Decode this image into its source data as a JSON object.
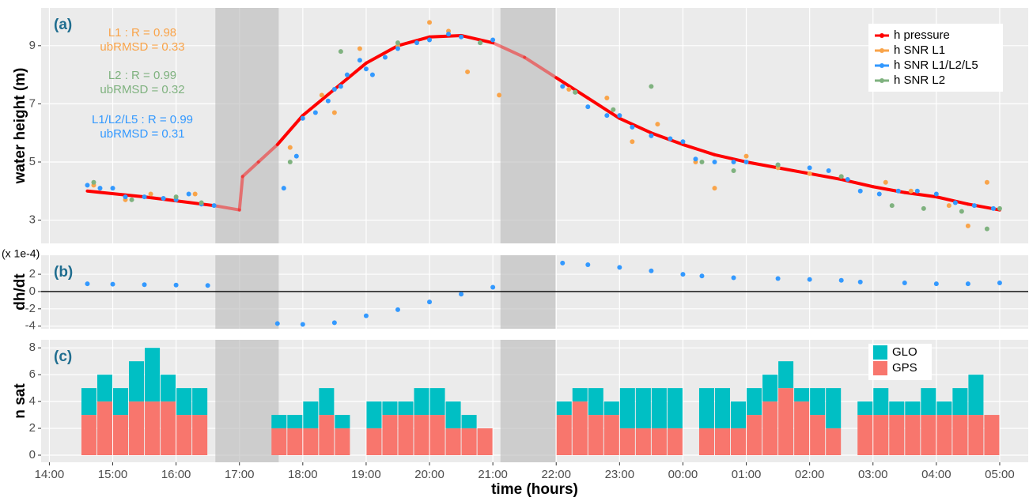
{
  "chart_data": [
    {
      "type": "scatter",
      "panel_label": "(a)",
      "y_label": "water height (m)",
      "ylim": [
        2.2,
        10.3
      ],
      "yticks": [
        3,
        5,
        7,
        9
      ],
      "grid": true,
      "shaded_x": [
        [
          16.62,
          17.62
        ],
        [
          21.12,
          21.99
        ]
      ],
      "annotations": [
        {
          "text": "L1 : R =  0.98",
          "color": "#f9a44a"
        },
        {
          "text": "ubRMSD =  0.33",
          "color": "#f9a44a"
        },
        {
          "text": "L2 : R =  0.99",
          "color": "#7fb27f"
        },
        {
          "text": "ubRMSD =  0.32",
          "color": "#7fb27f"
        },
        {
          "text": "L1/L2/L5 : R =  0.99",
          "color": "#3399ff"
        },
        {
          "text": "ubRMSD =  0.31",
          "color": "#3399ff"
        }
      ],
      "series": [
        {
          "name": "h pressure",
          "color": "#ff0000",
          "style": "line",
          "x": [
            14.6,
            15.5,
            16.6,
            17.0,
            17.05,
            17.3,
            17.6,
            18.0,
            18.5,
            19.0,
            19.5,
            20.0,
            20.5,
            21.0,
            21.5,
            22.0,
            22.5,
            23.0,
            23.5,
            24.0,
            24.5,
            25.0,
            25.5,
            26.0,
            26.5,
            27.0,
            27.5,
            28.0,
            28.5,
            29.0
          ],
          "values": [
            4.0,
            3.8,
            3.5,
            3.35,
            4.5,
            5.0,
            5.6,
            6.6,
            7.5,
            8.4,
            9.0,
            9.3,
            9.35,
            9.1,
            8.6,
            7.9,
            7.2,
            6.5,
            6.0,
            5.6,
            5.25,
            5.0,
            4.8,
            4.6,
            4.4,
            4.15,
            3.95,
            3.8,
            3.55,
            3.35
          ]
        },
        {
          "name": "h SNR L1",
          "color": "#f9a44a",
          "style": "points",
          "x": [
            14.7,
            15.2,
            15.6,
            16.0,
            16.3,
            17.8,
            18.3,
            18.5,
            18.9,
            19.5,
            20.0,
            20.3,
            20.6,
            21.1,
            22.2,
            22.8,
            23.2,
            23.6,
            24.2,
            24.5,
            25.0,
            25.5,
            26.0,
            26.5,
            27.2,
            27.6,
            28.2,
            28.5,
            28.8
          ],
          "values": [
            4.2,
            3.7,
            3.9,
            3.7,
            3.9,
            5.5,
            7.3,
            6.7,
            8.9,
            9.0,
            9.8,
            9.5,
            8.1,
            7.3,
            7.5,
            7.2,
            5.7,
            6.3,
            5.0,
            4.1,
            5.2,
            4.8,
            4.6,
            4.5,
            4.3,
            4.0,
            3.5,
            2.8,
            4.3
          ]
        },
        {
          "name": "h SNR L1/L2/L5",
          "color": "#3399ff",
          "style": "points",
          "x": [
            14.6,
            14.8,
            15.0,
            15.2,
            15.5,
            15.8,
            16.0,
            16.2,
            16.4,
            16.6,
            17.7,
            17.9,
            18.0,
            18.2,
            18.4,
            18.5,
            18.6,
            18.7,
            18.9,
            19.0,
            19.1,
            19.3,
            19.5,
            19.8,
            20.0,
            20.3,
            20.5,
            20.8,
            21.0,
            22.1,
            22.3,
            22.5,
            22.8,
            23.0,
            23.2,
            23.5,
            23.8,
            24.0,
            24.2,
            24.5,
            24.8,
            25.0,
            25.5,
            26.0,
            26.3,
            26.6,
            26.8,
            27.1,
            27.4,
            27.7,
            28.0,
            28.3,
            28.6,
            28.9
          ],
          "values": [
            4.2,
            4.1,
            4.1,
            3.8,
            3.8,
            3.75,
            3.7,
            3.9,
            3.55,
            3.5,
            4.1,
            5.2,
            6.5,
            6.7,
            7.1,
            7.5,
            7.6,
            8.0,
            8.5,
            8.2,
            8.0,
            8.6,
            8.9,
            9.1,
            9.2,
            9.4,
            9.3,
            9.1,
            9.2,
            7.6,
            7.4,
            6.9,
            6.6,
            6.6,
            6.2,
            5.9,
            5.8,
            5.7,
            5.1,
            5.0,
            5.0,
            5.0,
            4.9,
            4.8,
            4.7,
            4.4,
            4.0,
            3.9,
            4.0,
            4.0,
            3.9,
            3.6,
            3.5,
            3.4
          ]
        },
        {
          "name": "h SNR L2",
          "color": "#7fb27f",
          "style": "points",
          "x": [
            14.7,
            15.3,
            16.0,
            16.4,
            17.8,
            18.6,
            19.5,
            20.8,
            22.3,
            22.9,
            23.5,
            24.3,
            24.8,
            25.5,
            26.5,
            27.3,
            27.8,
            28.4,
            28.8,
            29.0
          ],
          "values": [
            4.3,
            3.7,
            3.8,
            3.6,
            5.0,
            8.8,
            9.1,
            9.1,
            7.4,
            6.8,
            7.6,
            5.0,
            4.7,
            4.9,
            4.5,
            3.5,
            3.4,
            3.3,
            2.7,
            3.4
          ]
        }
      ]
    },
    {
      "type": "scatter",
      "panel_label": "(b)",
      "y_label": "dh/dt",
      "unit_label": "(x 1e-4)",
      "ylim": [
        -4.3,
        4.2
      ],
      "yticks": [
        2,
        0,
        -2,
        -4
      ],
      "grid": true,
      "hline": 0,
      "series": [
        {
          "color": "#3399ff",
          "style": "points",
          "x": [
            14.6,
            15.0,
            15.5,
            16.0,
            16.5,
            17.6,
            18.0,
            18.5,
            19.0,
            19.5,
            20.0,
            20.5,
            21.0,
            22.1,
            22.5,
            23.0,
            23.5,
            24.0,
            24.3,
            24.8,
            25.5,
            26.0,
            26.5,
            26.8,
            27.5,
            28.0,
            28.5,
            29.0
          ],
          "values": [
            0.9,
            0.85,
            0.8,
            0.75,
            0.7,
            -3.7,
            -3.8,
            -3.6,
            -2.8,
            -2.1,
            -1.2,
            -0.3,
            0.5,
            3.3,
            3.1,
            2.8,
            2.4,
            2.0,
            1.8,
            1.6,
            1.5,
            1.4,
            1.3,
            1.1,
            1.0,
            0.9,
            0.9,
            1.0
          ]
        }
      ]
    },
    {
      "type": "bar",
      "stacked": true,
      "panel_label": "(c)",
      "y_label": "n sat",
      "x_label": "time (hours)",
      "xlim": [
        13.87,
        29.45
      ],
      "xticks": [
        {
          "value": 14,
          "label": "14:00"
        },
        {
          "value": 15,
          "label": "15:00"
        },
        {
          "value": 16,
          "label": "16:00"
        },
        {
          "value": 17,
          "label": "17:00"
        },
        {
          "value": 18,
          "label": "18:00"
        },
        {
          "value": 19,
          "label": "19:00"
        },
        {
          "value": 20,
          "label": "20:00"
        },
        {
          "value": 21,
          "label": "21:00"
        },
        {
          "value": 22,
          "label": "22:00"
        },
        {
          "value": 23,
          "label": "23:00"
        },
        {
          "value": 24,
          "label": "00:00"
        },
        {
          "value": 25,
          "label": "01:00"
        },
        {
          "value": 26,
          "label": "02:00"
        },
        {
          "value": 27,
          "label": "03:00"
        },
        {
          "value": 28,
          "label": "04:00"
        },
        {
          "value": 29,
          "label": "05:00"
        }
      ],
      "ylim": [
        -0.53,
        8.6
      ],
      "yticks": [
        0,
        2,
        4,
        6,
        8
      ],
      "grid": true,
      "x": [
        14.625,
        14.875,
        15.125,
        15.375,
        15.625,
        15.875,
        16.125,
        16.375,
        17.625,
        17.875,
        18.125,
        18.375,
        18.625,
        19.125,
        19.375,
        19.625,
        19.875,
        20.125,
        20.375,
        20.625,
        20.875,
        22.125,
        22.375,
        22.625,
        22.875,
        23.125,
        23.375,
        23.625,
        23.875,
        24.375,
        24.625,
        24.875,
        25.125,
        25.375,
        25.625,
        25.875,
        26.125,
        26.375,
        26.875,
        27.125,
        27.375,
        27.625,
        27.875,
        28.125,
        28.375,
        28.625,
        28.875
      ],
      "series": [
        {
          "name": "GPS",
          "color": "#f8766d",
          "values": [
            3,
            4,
            3,
            4,
            4,
            4,
            3,
            3,
            2,
            2,
            2,
            3,
            2,
            2,
            3,
            3,
            3,
            3,
            2,
            2,
            2,
            3,
            4,
            3,
            3,
            2,
            2,
            2,
            2,
            2,
            2,
            2,
            3,
            4,
            5,
            4,
            3,
            2,
            3,
            3,
            3,
            3,
            3,
            3,
            3,
            3,
            3
          ]
        },
        {
          "name": "GLO",
          "color": "#00bfc4",
          "values": [
            2,
            2,
            2,
            3,
            4,
            2,
            2,
            2,
            1,
            1,
            2,
            2,
            1,
            2,
            1,
            1,
            2,
            2,
            2,
            1,
            0,
            1,
            1,
            2,
            1,
            3,
            3,
            3,
            3,
            3,
            3,
            2,
            2,
            2,
            2,
            1,
            2,
            3,
            1,
            2,
            1,
            1,
            2,
            1,
            2,
            3,
            0
          ]
        }
      ]
    }
  ]
}
